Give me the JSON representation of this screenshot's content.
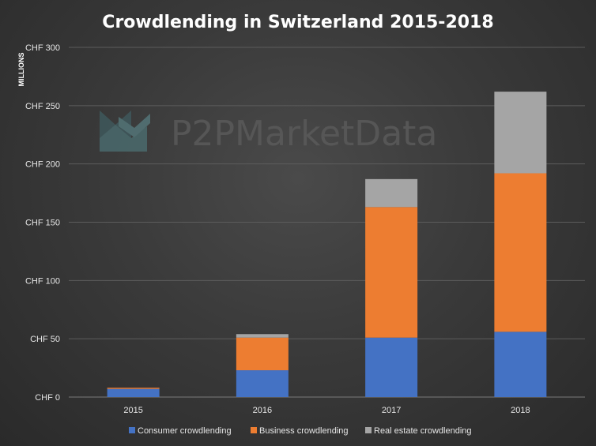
{
  "chart_data": {
    "type": "bar",
    "stacked": true,
    "title": "Crowdlending in Switzerland 2015-2018",
    "ylabel": "MILLIONS",
    "xlabel": "",
    "categories": [
      "2015",
      "2016",
      "2017",
      "2018"
    ],
    "series": [
      {
        "name": "Consumer crowdlending",
        "color": "#4472c4",
        "values": [
          7,
          23,
          51,
          56
        ]
      },
      {
        "name": "Business crowdlending",
        "color": "#ed7d31",
        "values": [
          1,
          28,
          112,
          136
        ]
      },
      {
        "name": "Real estate crowdlending",
        "color": "#a5a5a5",
        "values": [
          0,
          3,
          24,
          70
        ]
      }
    ],
    "ylim": [
      0,
      300
    ],
    "yticks": [
      0,
      50,
      100,
      150,
      200,
      250,
      300
    ],
    "ytick_labels": [
      "CHF 0",
      "CHF 50",
      "CHF 100",
      "CHF 150",
      "CHF 200",
      "CHF 250",
      "CHF 300"
    ],
    "grid": true,
    "legend_position": "bottom"
  },
  "watermark": {
    "text": "P2PMarketData",
    "icon": "p2p-logo-icon"
  }
}
